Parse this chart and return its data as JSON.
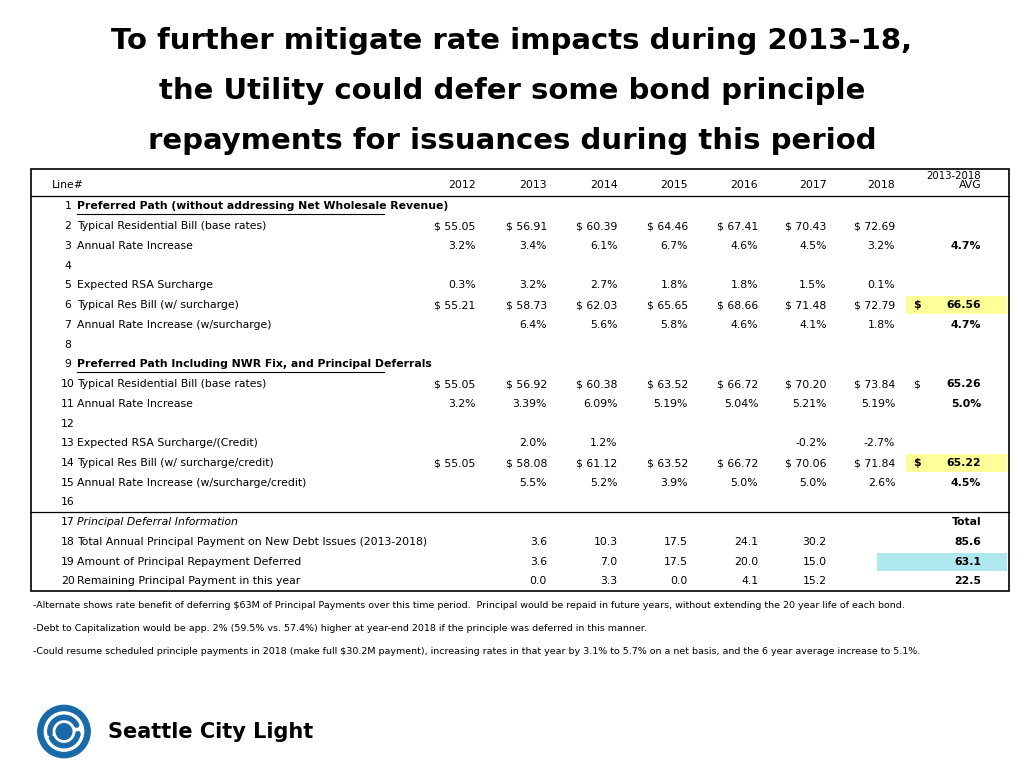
{
  "title_line1": "To further mitigate rate impacts during 2013-18,",
  "title_line2": "the Utility could defer some bond principle",
  "title_line3": "repayments for issuances during this period",
  "background_color": "#ffffff",
  "rows": [
    {
      "line": "1",
      "label": "Preferred Path (without addressing Net Wholesale Revenue)",
      "bold": true,
      "italic": false,
      "underline": true,
      "d0": "",
      "d1": "",
      "d2": "",
      "d3": "",
      "d4": "",
      "d5": "",
      "d6": "",
      "d7": "",
      "avg": "",
      "highlight": ""
    },
    {
      "line": "2",
      "label": "Typical Residential Bill (base rates)",
      "bold": false,
      "italic": false,
      "underline": false,
      "d0": "$ 55.05",
      "d1": "$ 56.91",
      "d2": "$ 60.39",
      "d3": "$ 64.46",
      "d4": "$ 67.41",
      "d5": "$ 70.43",
      "d6": "$ 72.69",
      "d7": "",
      "avg": "",
      "highlight": ""
    },
    {
      "line": "3",
      "label": "Annual Rate Increase",
      "bold": false,
      "italic": false,
      "underline": false,
      "d0": "3.2%",
      "d1": "3.4%",
      "d2": "6.1%",
      "d3": "6.7%",
      "d4": "4.6%",
      "d5": "4.5%",
      "d6": "3.2%",
      "d7": "",
      "avg": "4.7%",
      "highlight": ""
    },
    {
      "line": "4",
      "label": "",
      "bold": false,
      "italic": false,
      "underline": false,
      "d0": "",
      "d1": "",
      "d2": "",
      "d3": "",
      "d4": "",
      "d5": "",
      "d6": "",
      "d7": "",
      "avg": "",
      "highlight": ""
    },
    {
      "line": "5",
      "label": "Expected RSA Surcharge",
      "bold": false,
      "italic": false,
      "underline": false,
      "d0": "0.3%",
      "d1": "3.2%",
      "d2": "2.7%",
      "d3": "1.8%",
      "d4": "1.8%",
      "d5": "1.5%",
      "d6": "0.1%",
      "d7": "",
      "avg": "",
      "highlight": ""
    },
    {
      "line": "6",
      "label": "Typical Res Bill (w/ surcharge)",
      "bold": false,
      "italic": false,
      "underline": false,
      "d0": "$ 55.21",
      "d1": "$ 58.73",
      "d2": "$ 62.03",
      "d3": "$ 65.65",
      "d4": "$ 68.66",
      "d5": "$ 71.48",
      "d6": "$ 72.79",
      "d7": "$",
      "avg": "66.56",
      "highlight": "yellow"
    },
    {
      "line": "7",
      "label": "Annual Rate Increase (w/surcharge)",
      "bold": false,
      "italic": false,
      "underline": false,
      "d0": "",
      "d1": "6.4%",
      "d2": "5.6%",
      "d3": "5.8%",
      "d4": "4.6%",
      "d5": "4.1%",
      "d6": "1.8%",
      "d7": "",
      "avg": "4.7%",
      "highlight": ""
    },
    {
      "line": "8",
      "label": "",
      "bold": false,
      "italic": false,
      "underline": false,
      "d0": "",
      "d1": "",
      "d2": "",
      "d3": "",
      "d4": "",
      "d5": "",
      "d6": "",
      "d7": "",
      "avg": "",
      "highlight": ""
    },
    {
      "line": "9",
      "label": "Preferred Path Including NWR Fix, and Principal Deferrals",
      "bold": true,
      "italic": false,
      "underline": true,
      "d0": "",
      "d1": "",
      "d2": "",
      "d3": "",
      "d4": "",
      "d5": "",
      "d6": "",
      "d7": "",
      "avg": "",
      "highlight": ""
    },
    {
      "line": "10",
      "label": "Typical Residential Bill (base rates)",
      "bold": false,
      "italic": false,
      "underline": false,
      "d0": "$ 55.05",
      "d1": "$ 56.92",
      "d2": "$ 60.38",
      "d3": "$ 63.52",
      "d4": "$ 66.72",
      "d5": "$ 70.20",
      "d6": "$ 73.84",
      "d7": "$",
      "avg": "65.26",
      "highlight": ""
    },
    {
      "line": "11",
      "label": "Annual Rate Increase",
      "bold": false,
      "italic": false,
      "underline": false,
      "d0": "3.2%",
      "d1": "3.39%",
      "d2": "6.09%",
      "d3": "5.19%",
      "d4": "5.04%",
      "d5": "5.21%",
      "d6": "5.19%",
      "d7": "",
      "avg": "5.0%",
      "highlight": ""
    },
    {
      "line": "12",
      "label": "",
      "bold": false,
      "italic": false,
      "underline": false,
      "d0": "",
      "d1": "",
      "d2": "",
      "d3": "",
      "d4": "",
      "d5": "",
      "d6": "",
      "d7": "",
      "avg": "",
      "highlight": ""
    },
    {
      "line": "13",
      "label": "Expected RSA Surcharge/(Credit)",
      "bold": false,
      "italic": false,
      "underline": false,
      "d0": "",
      "d1": "2.0%",
      "d2": "1.2%",
      "d3": "",
      "d4": "",
      "d5": "-0.2%",
      "d6": "-2.7%",
      "d7": "",
      "avg": "",
      "highlight": ""
    },
    {
      "line": "14",
      "label": "Typical Res Bill (w/ surcharge/credit)",
      "bold": false,
      "italic": false,
      "underline": false,
      "d0": "$ 55.05",
      "d1": "$ 58.08",
      "d2": "$ 61.12",
      "d3": "$ 63.52",
      "d4": "$ 66.72",
      "d5": "$ 70.06",
      "d6": "$ 71.84",
      "d7": "$",
      "avg": "65.22",
      "highlight": "yellow"
    },
    {
      "line": "15",
      "label": "Annual Rate Increase (w/surcharge/credit)",
      "bold": false,
      "italic": false,
      "underline": false,
      "d0": "",
      "d1": "5.5%",
      "d2": "5.2%",
      "d3": "3.9%",
      "d4": "5.0%",
      "d5": "5.0%",
      "d6": "2.6%",
      "d7": "",
      "avg": "4.5%",
      "highlight": ""
    },
    {
      "line": "16",
      "label": "",
      "bold": false,
      "italic": false,
      "underline": false,
      "d0": "",
      "d1": "",
      "d2": "",
      "d3": "",
      "d4": "",
      "d5": "",
      "d6": "",
      "d7": "",
      "avg": "",
      "highlight": ""
    },
    {
      "line": "17",
      "label": "Principal Deferral Information",
      "bold": false,
      "italic": true,
      "underline": false,
      "d0": "",
      "d1": "",
      "d2": "",
      "d3": "",
      "d4": "",
      "d5": "",
      "d6": "",
      "d7": "",
      "avg": "Total",
      "highlight": ""
    },
    {
      "line": "18",
      "label": "Total Annual Principal Payment on New Debt Issues (2013-2018)",
      "bold": false,
      "italic": false,
      "underline": false,
      "d0": "",
      "d1": "3.6",
      "d2": "10.3",
      "d3": "17.5",
      "d4": "24.1",
      "d5": "30.2",
      "d6": "",
      "d7": "",
      "avg": "85.6",
      "highlight": ""
    },
    {
      "line": "19",
      "label": "Amount of Principal Repayment Deferred",
      "bold": false,
      "italic": false,
      "underline": false,
      "d0": "",
      "d1": "3.6",
      "d2": "7.0",
      "d3": "17.5",
      "d4": "20.0",
      "d5": "15.0",
      "d6": "",
      "d7": "",
      "avg": "63.1",
      "highlight": "cyan"
    },
    {
      "line": "20",
      "label": "Remaining Principal Payment in this year",
      "bold": false,
      "italic": false,
      "underline": false,
      "d0": "",
      "d1": "0.0",
      "d2": "3.3",
      "d3": "0.0",
      "d4": "4.1",
      "d5": "15.2",
      "d6": "",
      "d7": "",
      "avg": "22.5",
      "highlight": ""
    }
  ],
  "footnotes": [
    "-Alternate shows rate benefit of deferring $63M of Principal Payments over this time period.  Principal would be repaid in future years, without extending the 20 year life of each bond.",
    "-Debt to Capitalization would be app. 2% (59.5% vs. 57.4%) higher at year-end 2018 if the principle was deferred in this manner.",
    "-Could resume scheduled principle payments in 2018 (make full $30.2M payment), increasing rates in that year by 3.1% to 5.7% on a net basis, and the 6 year average increase to 5.1%."
  ],
  "col_header_underline": true,
  "yellow": "#FFFF99",
  "cyan": "#B0E8F0"
}
